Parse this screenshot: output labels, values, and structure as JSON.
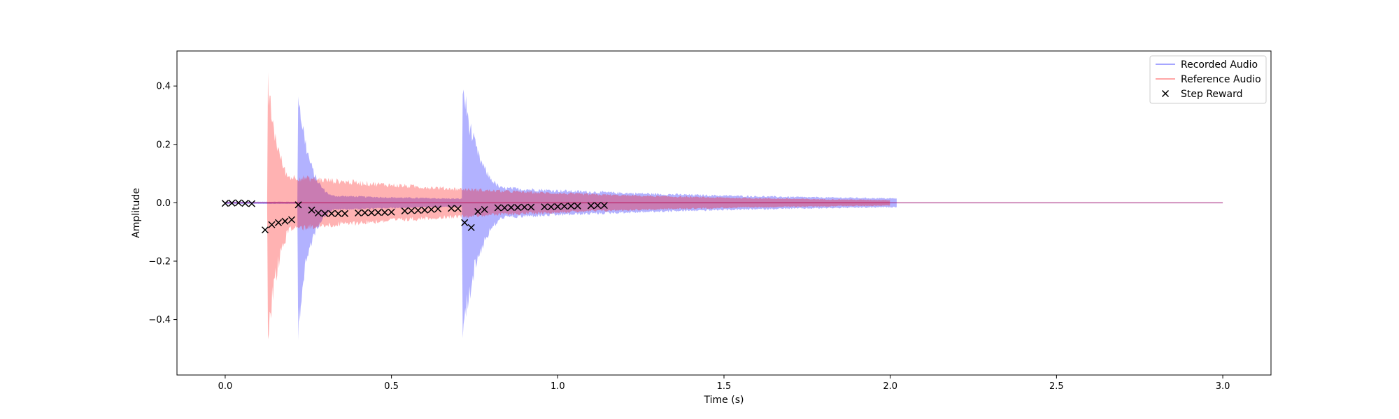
{
  "chart_data": {
    "type": "line",
    "title": "",
    "xlabel": "Time (s)",
    "ylabel": "Amplitude",
    "xlim": [
      -0.145,
      3.145
    ],
    "ylim": [
      -0.59,
      0.52
    ],
    "xticks": [
      0.0,
      0.5,
      1.0,
      1.5,
      2.0,
      2.5,
      3.0
    ],
    "xtick_labels": [
      "0.0",
      "0.5",
      "1.0",
      "1.5",
      "2.0",
      "2.5",
      "3.0"
    ],
    "yticks": [
      -0.4,
      -0.2,
      0.0,
      0.2,
      0.4
    ],
    "ytick_labels": [
      "−0.4",
      "−0.2",
      "0.0",
      "0.2",
      "0.4"
    ],
    "grid": false,
    "legend_placement": "top-right",
    "end_time": 3.0,
    "series": [
      {
        "name": "Recorded Audio",
        "kind": "waveform",
        "color": "#0000ff",
        "alpha": 0.3,
        "start": 0.0,
        "end": 2.02,
        "baseline_amp": 0.004,
        "onsets": [
          {
            "t": 0.218,
            "peak": 0.45,
            "trough": -0.49,
            "tau": 0.035,
            "tail_amp": 0.028,
            "tail_tau": 0.55
          },
          {
            "t": 0.713,
            "peak": 0.45,
            "trough": -0.51,
            "tau": 0.05,
            "tail_amp": 0.05,
            "tail_tau": 0.9
          }
        ]
      },
      {
        "name": "Reference Audio",
        "kind": "waveform",
        "color": "#ff0000",
        "alpha": 0.3,
        "start": 0.0,
        "end": 2.0,
        "baseline_amp": 0.0,
        "onsets": [
          {
            "t": 0.127,
            "peak": 0.47,
            "trough": -0.54,
            "tau": 0.04,
            "tail_amp": 0.11,
            "tail_tau": 0.8
          }
        ]
      },
      {
        "name": "Step Reward",
        "kind": "scatter",
        "marker": "x",
        "color": "#000000",
        "points": [
          [
            0.0,
            -0.002
          ],
          [
            0.02,
            -0.001
          ],
          [
            0.04,
            0.0
          ],
          [
            0.06,
            -0.002
          ],
          [
            0.08,
            -0.003
          ],
          [
            0.12,
            -0.093
          ],
          [
            0.14,
            -0.075
          ],
          [
            0.16,
            -0.068
          ],
          [
            0.18,
            -0.063
          ],
          [
            0.2,
            -0.058
          ],
          [
            0.22,
            -0.007
          ],
          [
            0.26,
            -0.025
          ],
          [
            0.28,
            -0.035
          ],
          [
            0.3,
            -0.037
          ],
          [
            0.32,
            -0.037
          ],
          [
            0.34,
            -0.037
          ],
          [
            0.36,
            -0.037
          ],
          [
            0.4,
            -0.035
          ],
          [
            0.42,
            -0.034
          ],
          [
            0.44,
            -0.034
          ],
          [
            0.46,
            -0.033
          ],
          [
            0.48,
            -0.033
          ],
          [
            0.5,
            -0.032
          ],
          [
            0.54,
            -0.028
          ],
          [
            0.56,
            -0.027
          ],
          [
            0.58,
            -0.026
          ],
          [
            0.6,
            -0.025
          ],
          [
            0.62,
            -0.023
          ],
          [
            0.64,
            -0.021
          ],
          [
            0.68,
            -0.019
          ],
          [
            0.7,
            -0.02
          ],
          [
            0.72,
            -0.068
          ],
          [
            0.74,
            -0.085
          ],
          [
            0.76,
            -0.03
          ],
          [
            0.78,
            -0.023
          ],
          [
            0.82,
            -0.017
          ],
          [
            0.84,
            -0.017
          ],
          [
            0.86,
            -0.016
          ],
          [
            0.88,
            -0.016
          ],
          [
            0.9,
            -0.015
          ],
          [
            0.92,
            -0.015
          ],
          [
            0.96,
            -0.014
          ],
          [
            0.98,
            -0.014
          ],
          [
            1.0,
            -0.013
          ],
          [
            1.02,
            -0.012
          ],
          [
            1.04,
            -0.011
          ],
          [
            1.06,
            -0.011
          ],
          [
            1.1,
            -0.01
          ],
          [
            1.12,
            -0.009
          ],
          [
            1.14,
            -0.009
          ]
        ]
      }
    ]
  }
}
